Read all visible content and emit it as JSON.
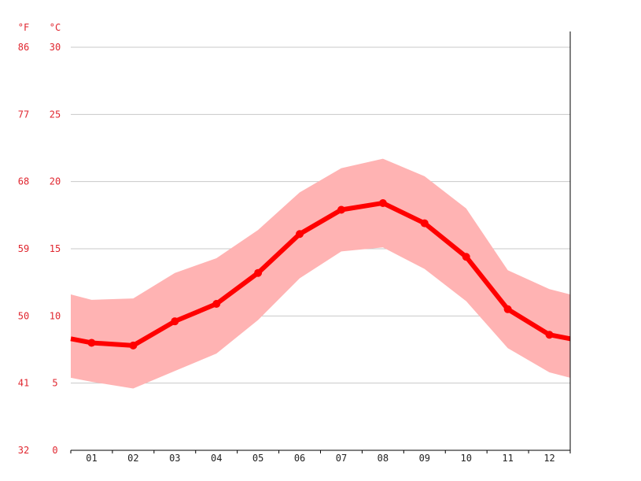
{
  "chart_data": {
    "type": "line",
    "unit_labels": {
      "fahrenheit": "°F",
      "celsius": "°C"
    },
    "categories": [
      "01",
      "02",
      "03",
      "04",
      "05",
      "06",
      "07",
      "08",
      "09",
      "10",
      "11",
      "12"
    ],
    "y_ticks_celsius": [
      "0",
      "5",
      "10",
      "15",
      "20",
      "25",
      "30"
    ],
    "y_ticks_fahrenheit": [
      "32",
      "41",
      "50",
      "59",
      "68",
      "77",
      "86"
    ],
    "ylim": [
      0,
      30
    ],
    "grid": true,
    "series": [
      {
        "values": [
          8.0,
          7.8,
          9.6,
          10.9,
          13.2,
          16.1,
          17.9,
          18.4,
          16.9,
          14.4,
          10.5,
          8.6
        ]
      }
    ],
    "range_band": {
      "max": [
        11.2,
        11.3,
        13.2,
        14.3,
        16.4,
        19.2,
        21.0,
        21.7,
        20.4,
        18.0,
        13.4,
        12.0
      ],
      "min": [
        5.1,
        4.6,
        5.9,
        7.2,
        9.7,
        12.8,
        14.8,
        15.1,
        13.5,
        11.1,
        7.6,
        5.8
      ]
    },
    "edge_values": {
      "line_start": 8.3,
      "line_end": 8.3,
      "max_start": 11.6,
      "max_end": 11.6,
      "min_start": 5.4,
      "min_end": 5.4
    },
    "colors": {
      "line": "#ff0000",
      "band": "#ffb3b3",
      "axis_labels": "#e0262f",
      "grid": "#c8c8c8",
      "category_labels": "#222222"
    }
  }
}
